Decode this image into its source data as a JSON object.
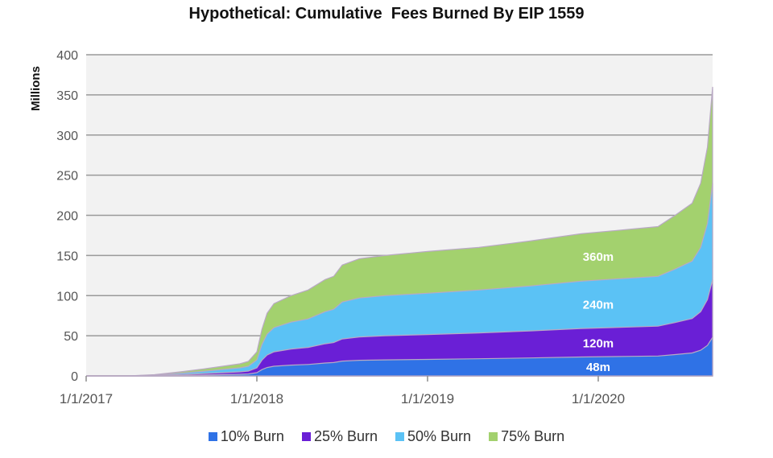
{
  "chart_data": {
    "type": "area",
    "title": "Hypothetical: Cumulative  Fees Burned By EIP 1559",
    "xlabel": "",
    "ylabel": "Millions",
    "ylim": [
      0,
      400
    ],
    "yticks": [
      0,
      50,
      100,
      150,
      200,
      250,
      300,
      350,
      400
    ],
    "xlim": [
      2017.0,
      2020.67
    ],
    "xticks": [
      {
        "label": "1/1/2017",
        "x": 2017.0
      },
      {
        "label": "1/1/2018",
        "x": 2018.0
      },
      {
        "label": "1/1/2019",
        "x": 2019.0
      },
      {
        "label": "1/1/2020",
        "x": 2020.0
      }
    ],
    "stacked": false,
    "grid": true,
    "legend_position": "bottom",
    "x": [
      2017.0,
      2017.25,
      2017.4,
      2017.55,
      2017.7,
      2017.8,
      2017.9,
      2017.95,
      2018.0,
      2018.03,
      2018.06,
      2018.1,
      2018.2,
      2018.3,
      2018.4,
      2018.45,
      2018.5,
      2018.6,
      2018.75,
      2019.0,
      2019.3,
      2019.6,
      2019.9,
      2020.2,
      2020.35,
      2020.45,
      2020.55,
      2020.6,
      2020.64,
      2020.67
    ],
    "series": [
      {
        "name": "75% Burn",
        "color": "#a3d16e",
        "label": "360m",
        "values": [
          0,
          0,
          1.5,
          5,
          9,
          12,
          15,
          18,
          30,
          58,
          78,
          90,
          100,
          107,
          120,
          124,
          138,
          146,
          150,
          155,
          160,
          168,
          177,
          183,
          186,
          200,
          215,
          240,
          285,
          360
        ]
      },
      {
        "name": "50% Burn",
        "color": "#5bc2f5",
        "label": "240m",
        "values": [
          0,
          0,
          1,
          3.3,
          6,
          8,
          10,
          12,
          20,
          39,
          52,
          60,
          67,
          71,
          80,
          83,
          92,
          97,
          100,
          103,
          107,
          112,
          118,
          122,
          124,
          133,
          143,
          160,
          190,
          240
        ]
      },
      {
        "name": "25% Burn",
        "color": "#6a1fd6",
        "label": "120m",
        "values": [
          0,
          0,
          0.5,
          1.7,
          3,
          4,
          5,
          6,
          10,
          19.5,
          26,
          30,
          33.5,
          35.5,
          40,
          41.5,
          46,
          48.5,
          50,
          51.5,
          53.5,
          56,
          59,
          61,
          62,
          66.5,
          71.5,
          80,
          95,
          120
        ]
      },
      {
        "name": "10% Burn",
        "color": "#2f72e6",
        "label": "48m",
        "values": [
          0,
          0,
          0.2,
          0.7,
          1.2,
          1.6,
          2,
          2.4,
          4,
          7.8,
          10.4,
          12,
          13.4,
          14.2,
          16,
          16.6,
          18.4,
          19.4,
          20,
          20.6,
          21.4,
          22.4,
          23.6,
          24.4,
          24.8,
          26.6,
          28.6,
          32,
          38,
          48
        ]
      }
    ],
    "legend": [
      {
        "name": "10% Burn",
        "color": "#2f72e6"
      },
      {
        "name": "25% Burn",
        "color": "#6a1fd6"
      },
      {
        "name": "50% Burn",
        "color": "#5bc2f5"
      },
      {
        "name": "75% Burn",
        "color": "#a3d16e"
      }
    ]
  }
}
